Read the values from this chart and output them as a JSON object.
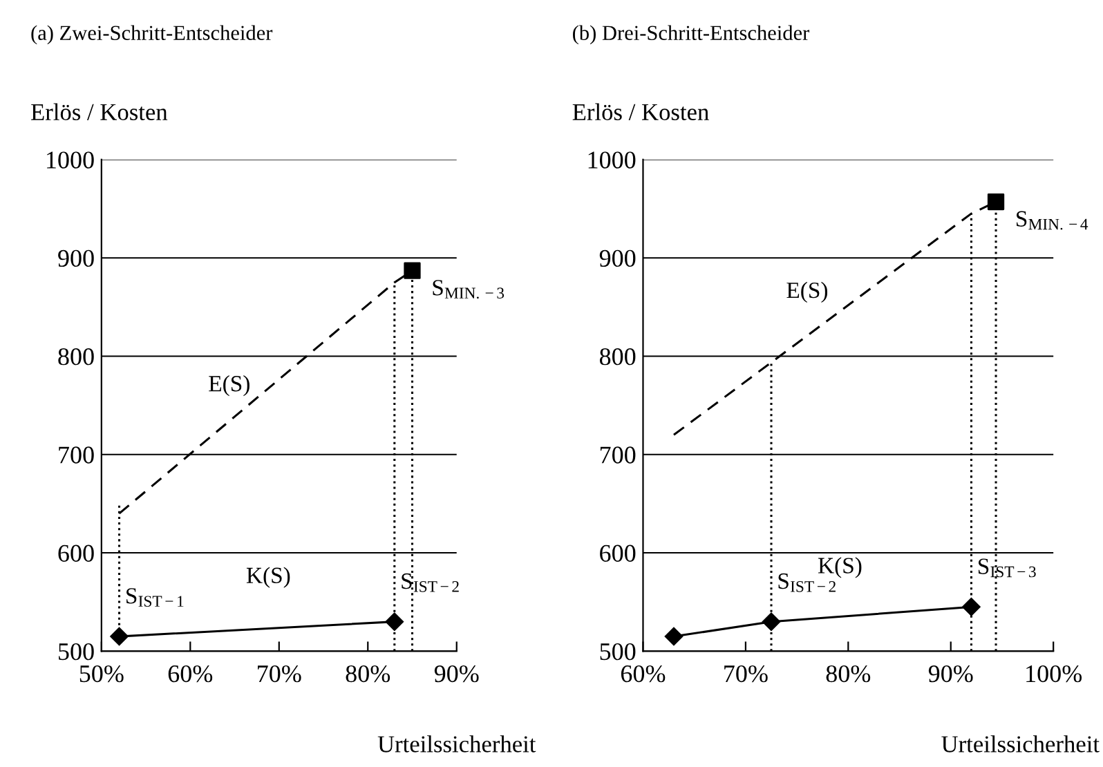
{
  "chart_data": [
    {
      "type": "line",
      "title": "(a) Zwei-Schritt-Entscheider",
      "xlabel": "Urteilssicherheit",
      "ylabel": "Erlös / Kosten",
      "xlim": [
        50,
        90
      ],
      "xticks": [
        {
          "value": 50,
          "label": "50%"
        },
        {
          "value": 60,
          "label": "60%"
        },
        {
          "value": 70,
          "label": "70%"
        },
        {
          "value": 80,
          "label": "80%"
        },
        {
          "value": 90,
          "label": "90%"
        }
      ],
      "ylim": [
        500,
        1000
      ],
      "yticks": [
        500,
        600,
        700,
        800,
        900,
        1000
      ],
      "grid": "y",
      "legend": false,
      "series": [
        {
          "x": [
            52,
            83
          ],
          "values": [
            515,
            530
          ],
          "color": "#000000",
          "marker": "diamond",
          "line_style": "solid"
        },
        {
          "x": [
            52,
            83,
            85
          ],
          "values": [
            640,
            875,
            887
          ],
          "color": "#000000",
          "marker": "none",
          "line_style": "dashed"
        },
        {
          "type": "scatter",
          "x": [
            85
          ],
          "values": [
            887
          ],
          "color": "#000000",
          "marker": "square"
        },
        {
          "x": [
            52,
            52
          ],
          "values": [
            515,
            648
          ],
          "color": "#000000",
          "marker": "none",
          "line_style": "dotted"
        },
        {
          "x": [
            83,
            83
          ],
          "values": [
            500,
            875
          ],
          "color": "#000000",
          "marker": "none",
          "line_style": "dotted"
        },
        {
          "x": [
            85,
            85
          ],
          "values": [
            500,
            887
          ],
          "color": "#000000",
          "marker": "none",
          "line_style": "dotted"
        }
      ],
      "annotations": [
        {
          "text": "S$_{IST−1}$",
          "x": 52,
          "y": 515
        },
        {
          "text": "S$_{IST−2}$",
          "x": 83,
          "y": 530
        },
        {
          "text": "S$_{MIN.−3}$",
          "x": 85,
          "y": 887
        },
        "E(S)",
        "K(S)"
      ]
    },
    {
      "type": "line",
      "title": "(b) Drei-Schritt-Entscheider",
      "xlabel": "Urteilssicherheit",
      "ylabel": "Erlös / Kosten",
      "xlim": [
        60,
        100
      ],
      "xticks": [
        {
          "value": 60,
          "label": "60%"
        },
        {
          "value": 70,
          "label": "70%"
        },
        {
          "value": 80,
          "label": "80%"
        },
        {
          "value": 90,
          "label": "90%"
        },
        {
          "value": 100,
          "label": "100%"
        }
      ],
      "ylim": [
        500,
        1000
      ],
      "yticks": [
        500,
        600,
        700,
        800,
        900,
        1000
      ],
      "grid": "y",
      "legend": false,
      "series": [
        {
          "x": [
            63,
            72.5,
            92
          ],
          "values": [
            515,
            530,
            545
          ],
          "color": "#000000",
          "marker": "diamond",
          "line_style": "solid"
        },
        {
          "x": [
            63,
            92,
            94.4
          ],
          "values": [
            720,
            945,
            957
          ],
          "color": "#000000",
          "marker": "none",
          "line_style": "dashed"
        },
        {
          "type": "scatter",
          "x": [
            94.4
          ],
          "values": [
            957
          ],
          "color": "#000000",
          "marker": "square"
        },
        {
          "x": [
            72.5,
            72.5
          ],
          "values": [
            500,
            793
          ],
          "color": "#000000",
          "marker": "none",
          "line_style": "dotted"
        },
        {
          "x": [
            92,
            92
          ],
          "values": [
            500,
            945
          ],
          "color": "#000000",
          "marker": "none",
          "line_style": "dotted"
        },
        {
          "x": [
            94.4,
            94.4
          ],
          "values": [
            500,
            957
          ],
          "color": "#000000",
          "marker": "none",
          "line_style": "dotted"
        }
      ],
      "annotations": [
        {
          "text": "S$_{IST−2}$",
          "x": 72.5,
          "y": 530
        },
        {
          "text": "S$_{IST−3}$",
          "x": 92,
          "y": 545
        },
        {
          "text": "S$_{MIN.−4}$",
          "x": 94.4,
          "y": 957
        },
        "E(S)",
        "K(S)"
      ]
    }
  ]
}
